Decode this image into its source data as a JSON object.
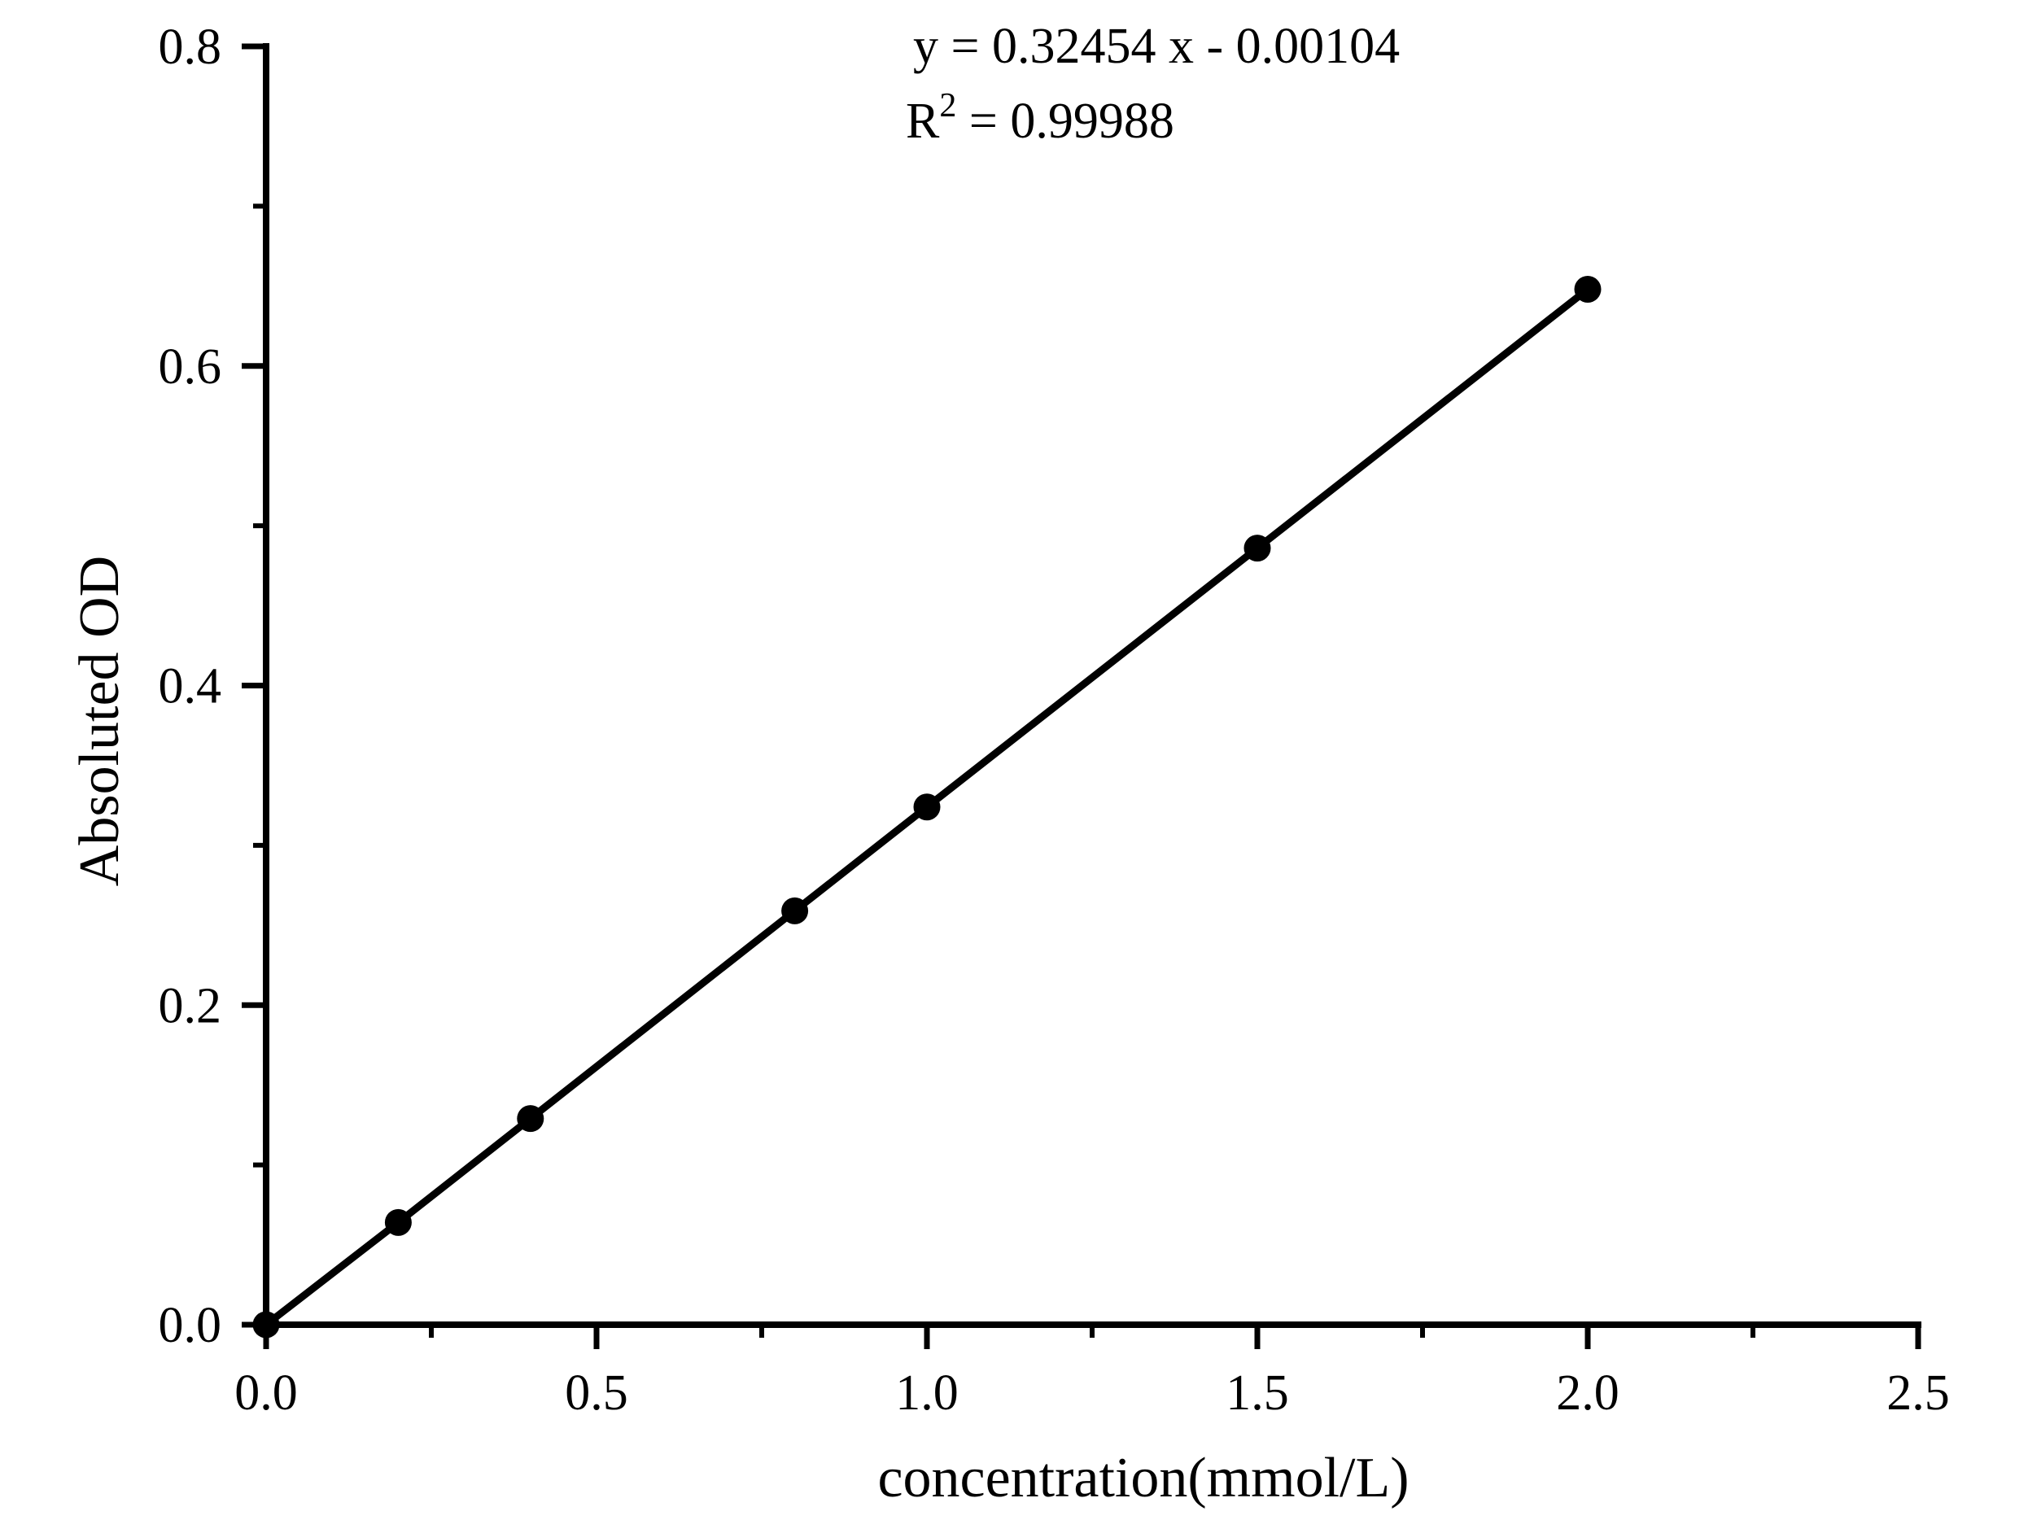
{
  "figure": {
    "background_color": "#ffffff",
    "foreground_color": "#000000"
  },
  "annotations": {
    "equation": "y = 0.32454 x - 0.00104",
    "r_squared_symbol": "R",
    "r_squared_exponent": "2",
    "r_squared_value": " = 0.99988"
  },
  "chart_data": {
    "type": "scatter",
    "title": "",
    "xlabel": "concentration(mmol/L)",
    "ylabel": "Absoluted OD",
    "x": [
      0.0,
      0.2,
      0.4,
      0.8,
      1.0,
      1.5,
      2.0
    ],
    "y": [
      0.0,
      0.064,
      0.129,
      0.259,
      0.324,
      0.486,
      0.648
    ],
    "fit": {
      "equation": "y = 0.32454 x - 0.00104",
      "slope": 0.32454,
      "intercept": -0.00104,
      "r_squared": 0.99988
    },
    "xlim": [
      0.0,
      2.5
    ],
    "ylim": [
      0.0,
      0.8
    ],
    "x_major_ticks": [
      0.0,
      0.5,
      1.0,
      1.5,
      2.0,
      2.5
    ],
    "x_tick_labels": [
      "0.0",
      "0.5",
      "1.0",
      "1.5",
      "2.0",
      "2.5"
    ],
    "x_minor_step": 0.25,
    "y_major_ticks": [
      0.0,
      0.2,
      0.4,
      0.6,
      0.8
    ],
    "y_tick_labels": [
      "0.0",
      "0.2",
      "0.4",
      "0.6",
      "0.8"
    ],
    "y_minor_step": 0.1,
    "grid": false,
    "legend_position": "none",
    "marker_style": "filled-circle",
    "marker_color": "#000000",
    "line_color": "#000000"
  }
}
